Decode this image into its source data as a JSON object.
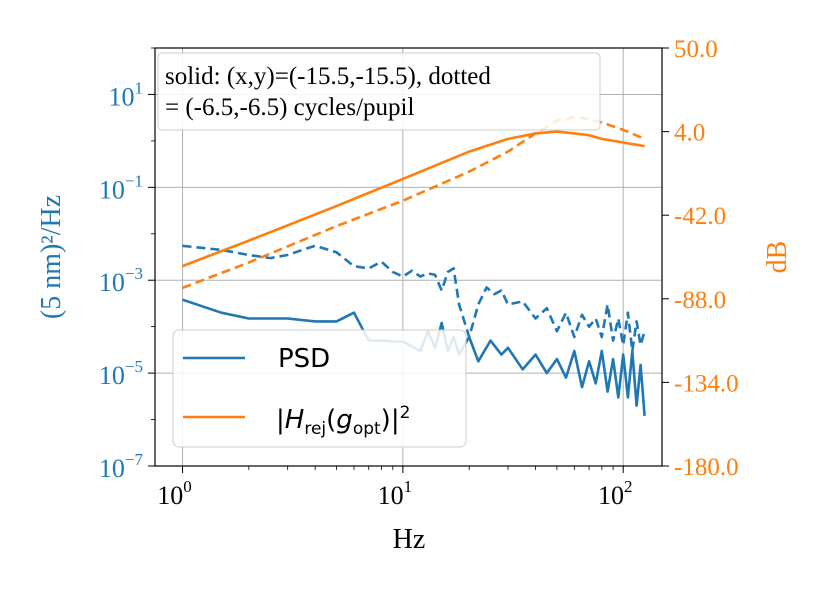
{
  "chart_data": {
    "type": "line",
    "xlabel": "Hz",
    "ylabel_left": "(5 nm)²/Hz",
    "ylabel_right": "dB",
    "xscale": "log",
    "xlim": [
      0.75,
      150
    ],
    "ylim_left": [
      1e-07,
      100
    ],
    "ylim_right": [
      -180.0,
      50.0
    ],
    "x_ticks": [
      {
        "value": 1,
        "base": "10",
        "exp": "0"
      },
      {
        "value": 10,
        "base": "10",
        "exp": "1"
      },
      {
        "value": 100,
        "base": "10",
        "exp": "2"
      }
    ],
    "y_left_ticks": [
      {
        "value": 10,
        "base": "10",
        "exp": "1"
      },
      {
        "value": 0.1,
        "base": "10",
        "exp": "−1"
      },
      {
        "value": 0.001,
        "base": "10",
        "exp": "−3"
      },
      {
        "value": 1e-05,
        "base": "10",
        "exp": "−5"
      },
      {
        "value": 1e-07,
        "base": "10",
        "exp": "−7"
      }
    ],
    "y_right_ticks": [
      "50.0",
      "4.0",
      "-42.0",
      "-88.0",
      "-134.0",
      "-180.0"
    ],
    "annotation": [
      "solid: (x,y)=(-15.5,-15.5), dotted",
      "= (-6.5,-6.5) cycles/pupil"
    ],
    "legend": {
      "placement": "lower-left",
      "entries": [
        {
          "label": "PSD",
          "color": "#1f77b4"
        },
        {
          "label": "|H_rej(g_opt)|²",
          "color": "#ff7f0e"
        }
      ]
    },
    "colors": {
      "psd": "#1f77b4",
      "hrej": "#ff7f0e",
      "grid": "#b0b0b0"
    },
    "series": [
      {
        "name": "PSD solid (-15.5,-15.5)",
        "axis": "left",
        "style": "solid",
        "color": "#1f77b4",
        "x": [
          1,
          1.5,
          2,
          3,
          4,
          5,
          6,
          7,
          8,
          9,
          10,
          12,
          13,
          14,
          15,
          16,
          17,
          18,
          20,
          22,
          25,
          28,
          30,
          35,
          40,
          45,
          50,
          55,
          60,
          65,
          70,
          75,
          80,
          85,
          90,
          95,
          100,
          105,
          110,
          115,
          120,
          125
        ],
        "y": [
          0.00038,
          0.0002,
          0.00015,
          0.00015,
          0.00013,
          0.00013,
          0.0002,
          5e-05,
          5e-05,
          4.8e-05,
          4.8e-05,
          3e-05,
          8e-05,
          3.5e-05,
          0.00012,
          3e-05,
          6e-05,
          2.5e-05,
          6e-05,
          1.8e-05,
          5e-05,
          2.5e-05,
          3.5e-05,
          1.2e-05,
          2.5e-05,
          1e-05,
          2e-05,
          8e-06,
          3e-05,
          5e-06,
          1.8e-05,
          6e-06,
          3e-05,
          4e-06,
          2e-05,
          3e-06,
          2.5e-05,
          3e-06,
          3e-05,
          2e-06,
          1.5e-05,
          1.2e-06
        ]
      },
      {
        "name": "PSD dotted (-6.5,-6.5)",
        "axis": "left",
        "style": "dashed",
        "color": "#1f77b4",
        "x": [
          1,
          1.5,
          2,
          2.5,
          3,
          3.5,
          4,
          5,
          6,
          7,
          8,
          9,
          10,
          11,
          12,
          13,
          14,
          15,
          16,
          17,
          18,
          20,
          22,
          24,
          26,
          28,
          30,
          35,
          40,
          45,
          50,
          55,
          60,
          65,
          70,
          75,
          80,
          85,
          90,
          95,
          100,
          105,
          110,
          115,
          120,
          125
        ],
        "y": [
          0.0055,
          0.0045,
          0.0035,
          0.003,
          0.0035,
          0.0045,
          0.0055,
          0.004,
          0.002,
          0.0018,
          0.0025,
          0.0015,
          0.0012,
          0.0016,
          0.0012,
          0.0014,
          0.0013,
          0.0006,
          0.0015,
          0.0018,
          0.0003,
          6e-05,
          0.0003,
          0.0007,
          0.0005,
          0.0006,
          0.0003,
          0.00035,
          0.00015,
          0.00025,
          8e-05,
          0.0002,
          6e-05,
          0.00018,
          0.0001,
          0.00015,
          6e-05,
          0.0003,
          5e-05,
          0.00015,
          4e-05,
          0.0002,
          3e-05,
          0.00013,
          4e-05,
          8e-05
        ]
      },
      {
        "name": "|H_rej|² solid",
        "axis": "right",
        "style": "solid",
        "color": "#ff7f0e",
        "x": [
          1,
          2,
          5,
          10,
          20,
          30,
          40,
          50,
          60,
          70,
          80,
          100,
          125
        ],
        "y": [
          -70,
          -56,
          -37,
          -22,
          -7,
          0,
          3,
          4,
          3,
          2,
          0,
          -2,
          -4
        ]
      },
      {
        "name": "|H_rej|² dotted",
        "axis": "right",
        "style": "dashed",
        "color": "#ff7f0e",
        "x": [
          1,
          2,
          5,
          10,
          20,
          30,
          40,
          50,
          60,
          70,
          80,
          100,
          125
        ],
        "y": [
          -82,
          -68,
          -48,
          -34,
          -18,
          -7,
          3,
          10,
          12,
          11,
          9,
          5,
          0
        ]
      }
    ]
  }
}
